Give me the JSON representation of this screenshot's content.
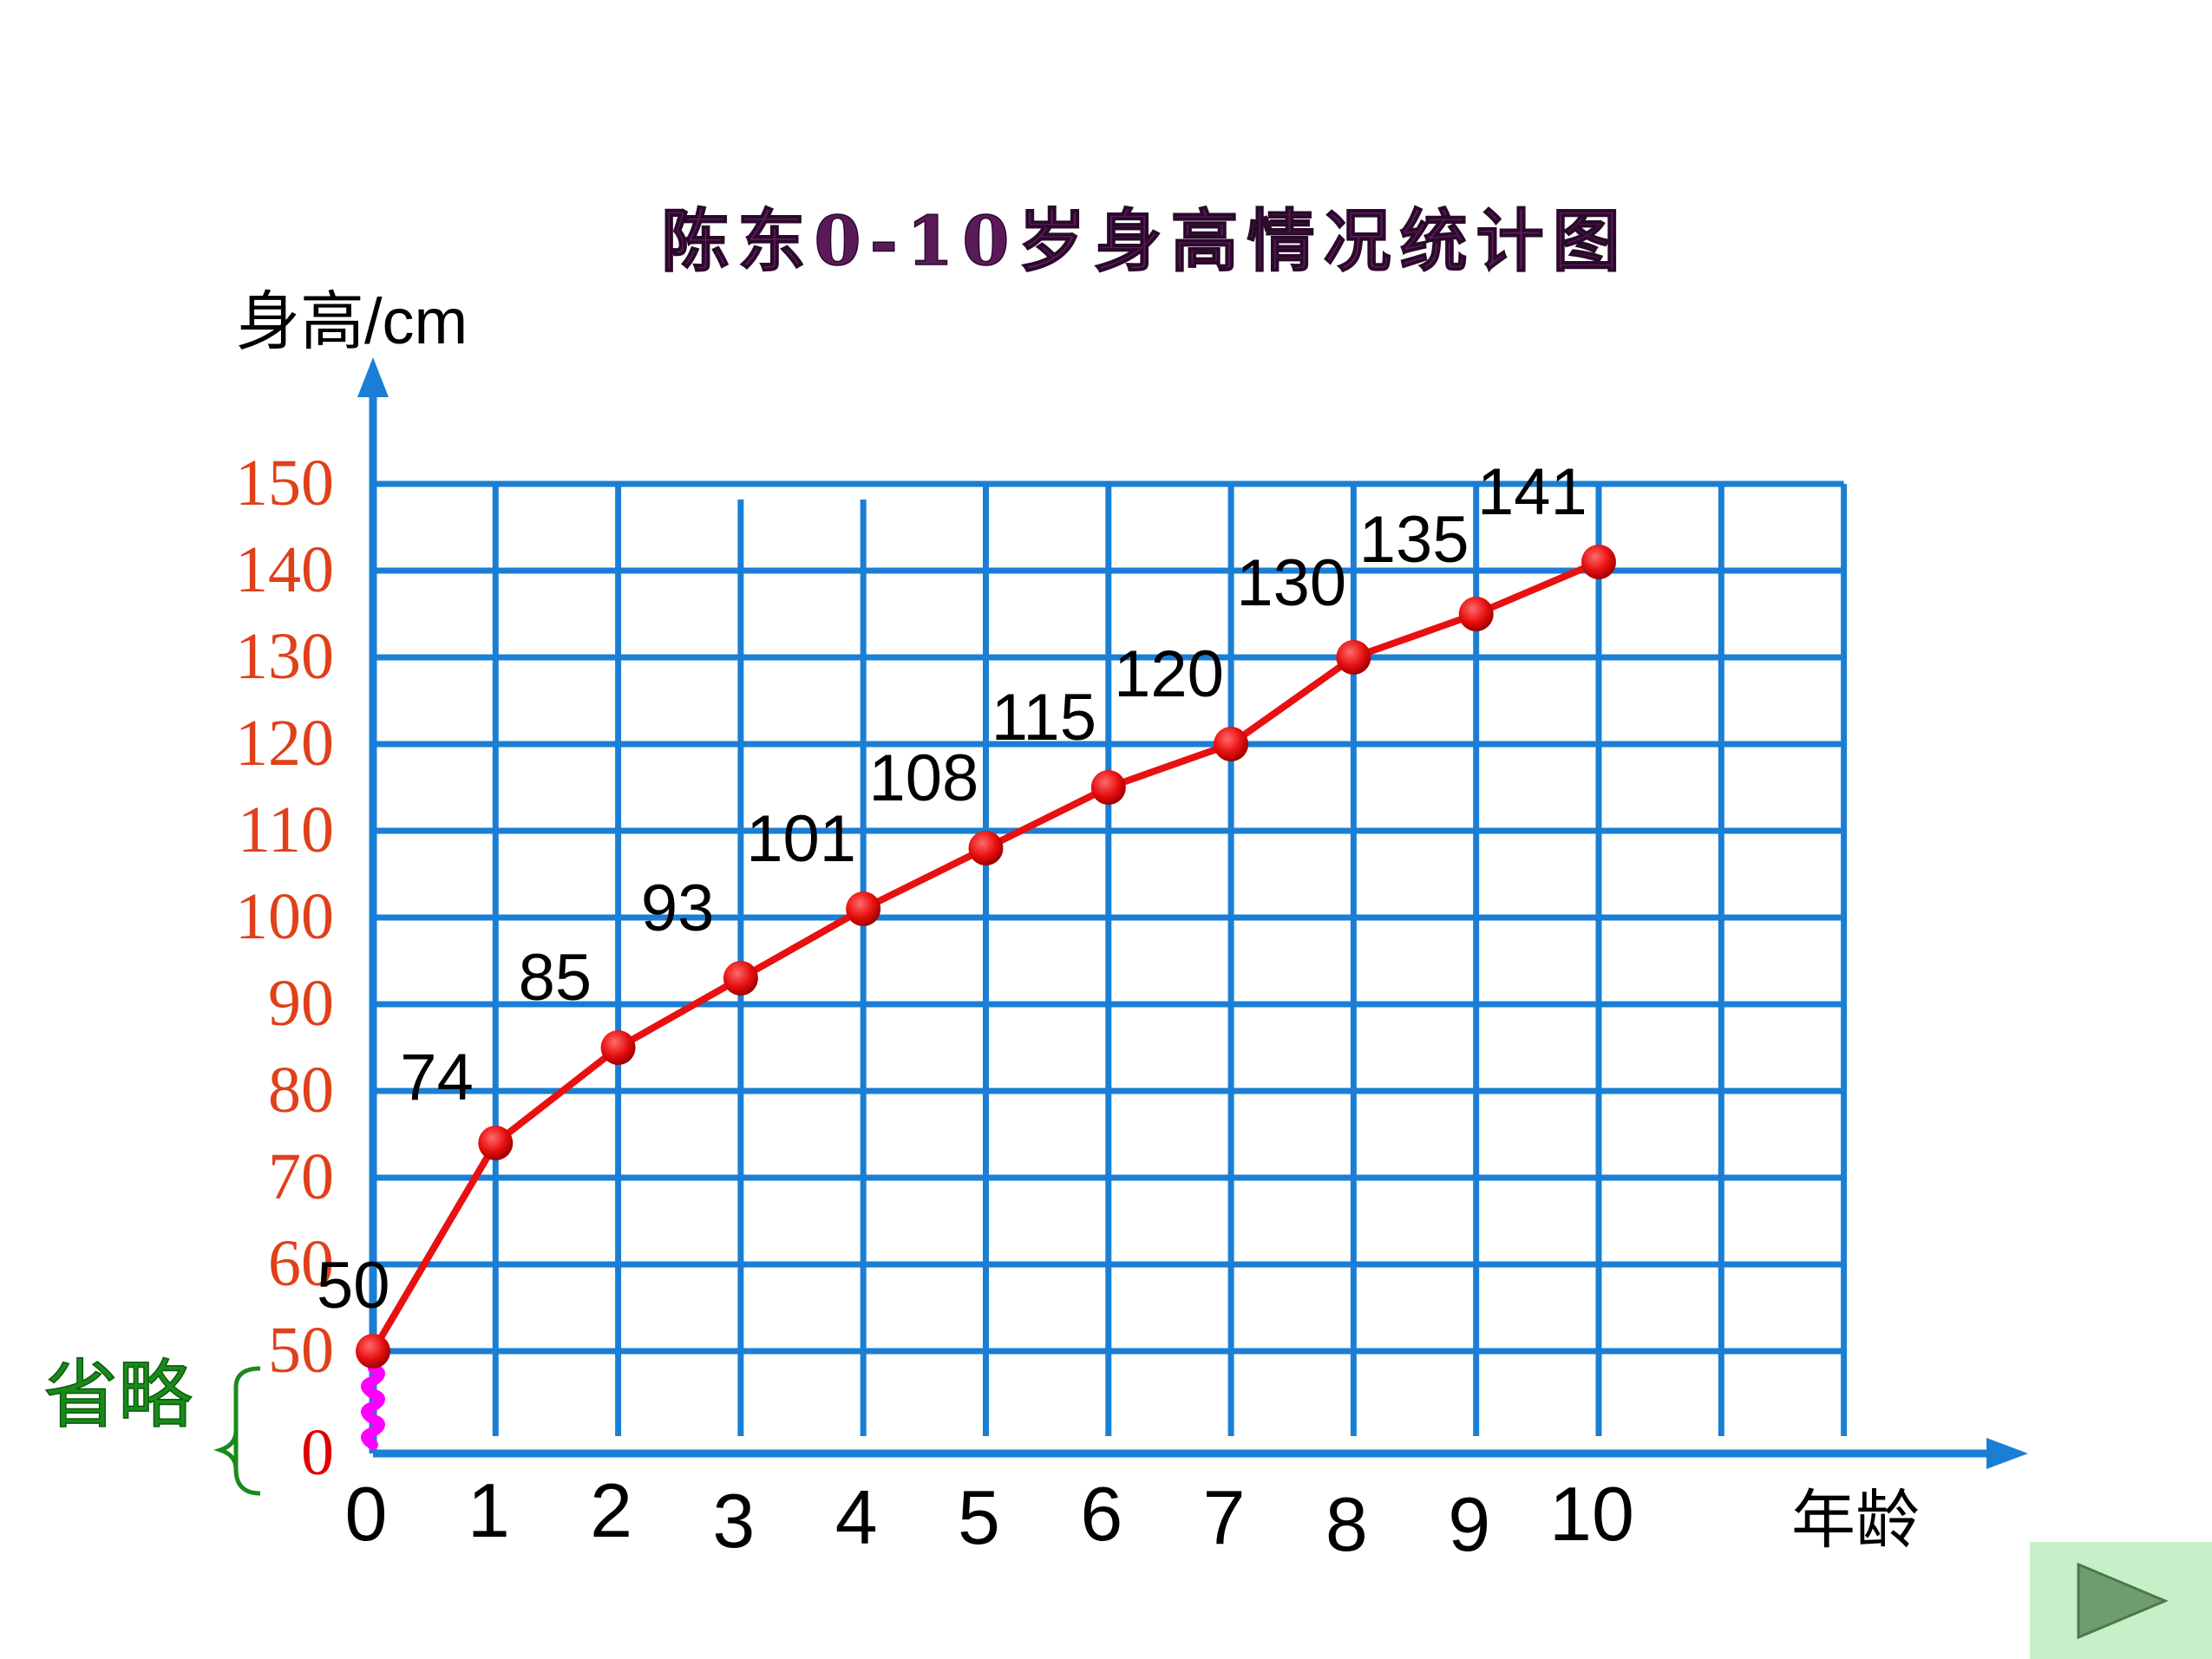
{
  "chart_data": {
    "type": "line",
    "title": "陈东0-10岁身高情况统计图",
    "ylabel": "身高/cm",
    "xlabel": "年龄",
    "omission_label": "省略",
    "x": [
      0,
      1,
      2,
      3,
      4,
      5,
      6,
      7,
      8,
      9,
      10
    ],
    "x_tick_labels": [
      "0",
      "1",
      "2",
      "3",
      "4",
      "5",
      "6",
      "7",
      "8",
      "9",
      "10"
    ],
    "values": [
      50,
      74,
      85,
      93,
      101,
      108,
      115,
      120,
      130,
      135,
      141
    ],
    "data_labels": [
      "50",
      "74",
      "85",
      "93",
      "101",
      "108",
      "115",
      "120",
      "130",
      "135",
      "141"
    ],
    "y_ticks": [
      50,
      60,
      70,
      80,
      90,
      100,
      110,
      120,
      130,
      140,
      150
    ],
    "y_tick_labels": [
      "0",
      "50",
      "60",
      "70",
      "80",
      "90",
      "100",
      "110",
      "120",
      "130",
      "140",
      "150"
    ],
    "ylim": [
      0,
      150
    ],
    "y_axis_break": [
      0,
      50
    ],
    "grid": true,
    "colors": {
      "grid": "#1a7fd4",
      "line": "#e81010",
      "title": "#5a1a5a",
      "ytick": "#e0401a",
      "ytick_zero": "#e00000",
      "omission": "#1a8a1a",
      "break_mark": "#ff00ff"
    }
  },
  "controls": {
    "next_icon": "play-triangle-icon"
  }
}
